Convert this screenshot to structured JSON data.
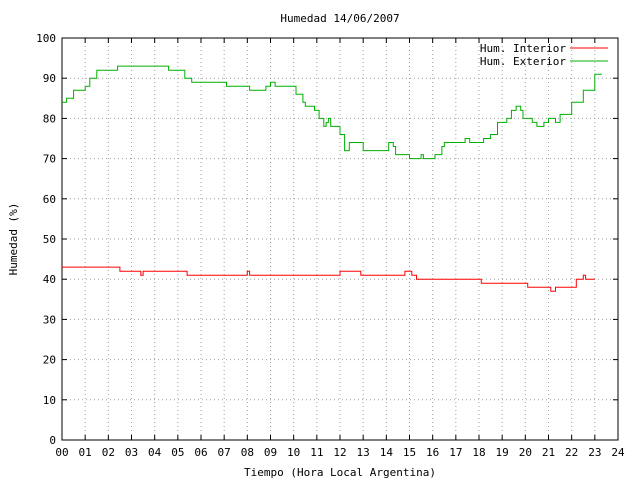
{
  "chart_data": {
    "type": "line",
    "title": "Humedad 14/06/2007",
    "xlabel": "Tiempo (Hora Local Argentina)",
    "ylabel": "Humedad (%)",
    "xlim": [
      0,
      24
    ],
    "ylim": [
      0,
      100
    ],
    "x_ticks": [
      "00",
      "01",
      "02",
      "03",
      "04",
      "05",
      "06",
      "07",
      "08",
      "09",
      "10",
      "11",
      "12",
      "13",
      "14",
      "15",
      "16",
      "17",
      "18",
      "19",
      "20",
      "21",
      "22",
      "23",
      "24"
    ],
    "y_ticks": [
      "0",
      "10",
      "20",
      "30",
      "40",
      "50",
      "60",
      "70",
      "80",
      "90",
      "100"
    ],
    "grid": true,
    "legend_position": "top-right",
    "series": [
      {
        "name": "Hum. Interior",
        "color": "#ff0000",
        "points": [
          [
            0,
            43
          ],
          [
            2.4,
            43
          ],
          [
            2.5,
            42
          ],
          [
            3.3,
            42
          ],
          [
            3.4,
            41
          ],
          [
            3.5,
            42
          ],
          [
            5.3,
            42
          ],
          [
            5.4,
            41
          ],
          [
            7.9,
            41
          ],
          [
            8.0,
            42
          ],
          [
            8.1,
            41
          ],
          [
            11.5,
            41
          ],
          [
            11.6,
            41
          ],
          [
            12.0,
            42
          ],
          [
            12.8,
            42
          ],
          [
            12.9,
            41
          ],
          [
            14.5,
            41
          ],
          [
            14.8,
            42
          ],
          [
            15.1,
            41
          ],
          [
            15.3,
            40
          ],
          [
            18.0,
            40
          ],
          [
            18.1,
            39
          ],
          [
            20.0,
            39
          ],
          [
            20.1,
            38
          ],
          [
            21.0,
            38
          ],
          [
            21.1,
            37
          ],
          [
            21.3,
            38
          ],
          [
            22.2,
            40
          ],
          [
            22.5,
            41
          ],
          [
            22.6,
            40
          ],
          [
            23.0,
            40
          ]
        ]
      },
      {
        "name": "Hum. Exterior",
        "color": "#00b000",
        "points": [
          [
            0,
            84
          ],
          [
            0.2,
            85
          ],
          [
            0.5,
            87
          ],
          [
            1.0,
            88
          ],
          [
            1.2,
            90
          ],
          [
            1.5,
            92
          ],
          [
            2.3,
            92
          ],
          [
            2.4,
            93
          ],
          [
            4.5,
            93
          ],
          [
            4.6,
            92
          ],
          [
            5.1,
            92
          ],
          [
            5.3,
            90
          ],
          [
            5.6,
            89
          ],
          [
            7.0,
            89
          ],
          [
            7.1,
            88
          ],
          [
            8.0,
            88
          ],
          [
            8.1,
            87
          ],
          [
            8.5,
            87
          ],
          [
            8.8,
            88
          ],
          [
            9.0,
            89
          ],
          [
            9.2,
            88
          ],
          [
            9.9,
            88
          ],
          [
            10.1,
            86
          ],
          [
            10.4,
            84
          ],
          [
            10.5,
            83
          ],
          [
            10.9,
            82
          ],
          [
            11.1,
            80
          ],
          [
            11.3,
            78
          ],
          [
            11.4,
            79
          ],
          [
            11.5,
            80
          ],
          [
            11.6,
            78
          ],
          [
            11.9,
            78
          ],
          [
            12.0,
            76
          ],
          [
            12.2,
            72
          ],
          [
            12.4,
            74
          ],
          [
            12.8,
            74
          ],
          [
            13.0,
            72
          ],
          [
            13.9,
            72
          ],
          [
            14.1,
            74
          ],
          [
            14.3,
            73
          ],
          [
            14.4,
            71
          ],
          [
            14.8,
            71
          ],
          [
            15.0,
            70
          ],
          [
            15.4,
            70
          ],
          [
            15.5,
            71
          ],
          [
            15.6,
            70
          ],
          [
            16.0,
            70
          ],
          [
            16.1,
            71
          ],
          [
            16.4,
            73
          ],
          [
            16.5,
            74
          ],
          [
            17.1,
            74
          ],
          [
            17.3,
            74
          ],
          [
            17.4,
            75
          ],
          [
            17.6,
            74
          ],
          [
            18.0,
            74
          ],
          [
            18.2,
            75
          ],
          [
            18.5,
            76
          ],
          [
            18.8,
            79
          ],
          [
            19.2,
            80
          ],
          [
            19.4,
            82
          ],
          [
            19.6,
            83
          ],
          [
            19.8,
            82
          ],
          [
            19.9,
            80
          ],
          [
            20.3,
            79
          ],
          [
            20.5,
            78
          ],
          [
            20.8,
            79
          ],
          [
            21.0,
            80
          ],
          [
            21.3,
            79
          ],
          [
            21.5,
            81
          ],
          [
            22.0,
            84
          ],
          [
            22.5,
            87
          ],
          [
            23.0,
            91
          ],
          [
            23.3,
            91
          ]
        ]
      }
    ]
  }
}
